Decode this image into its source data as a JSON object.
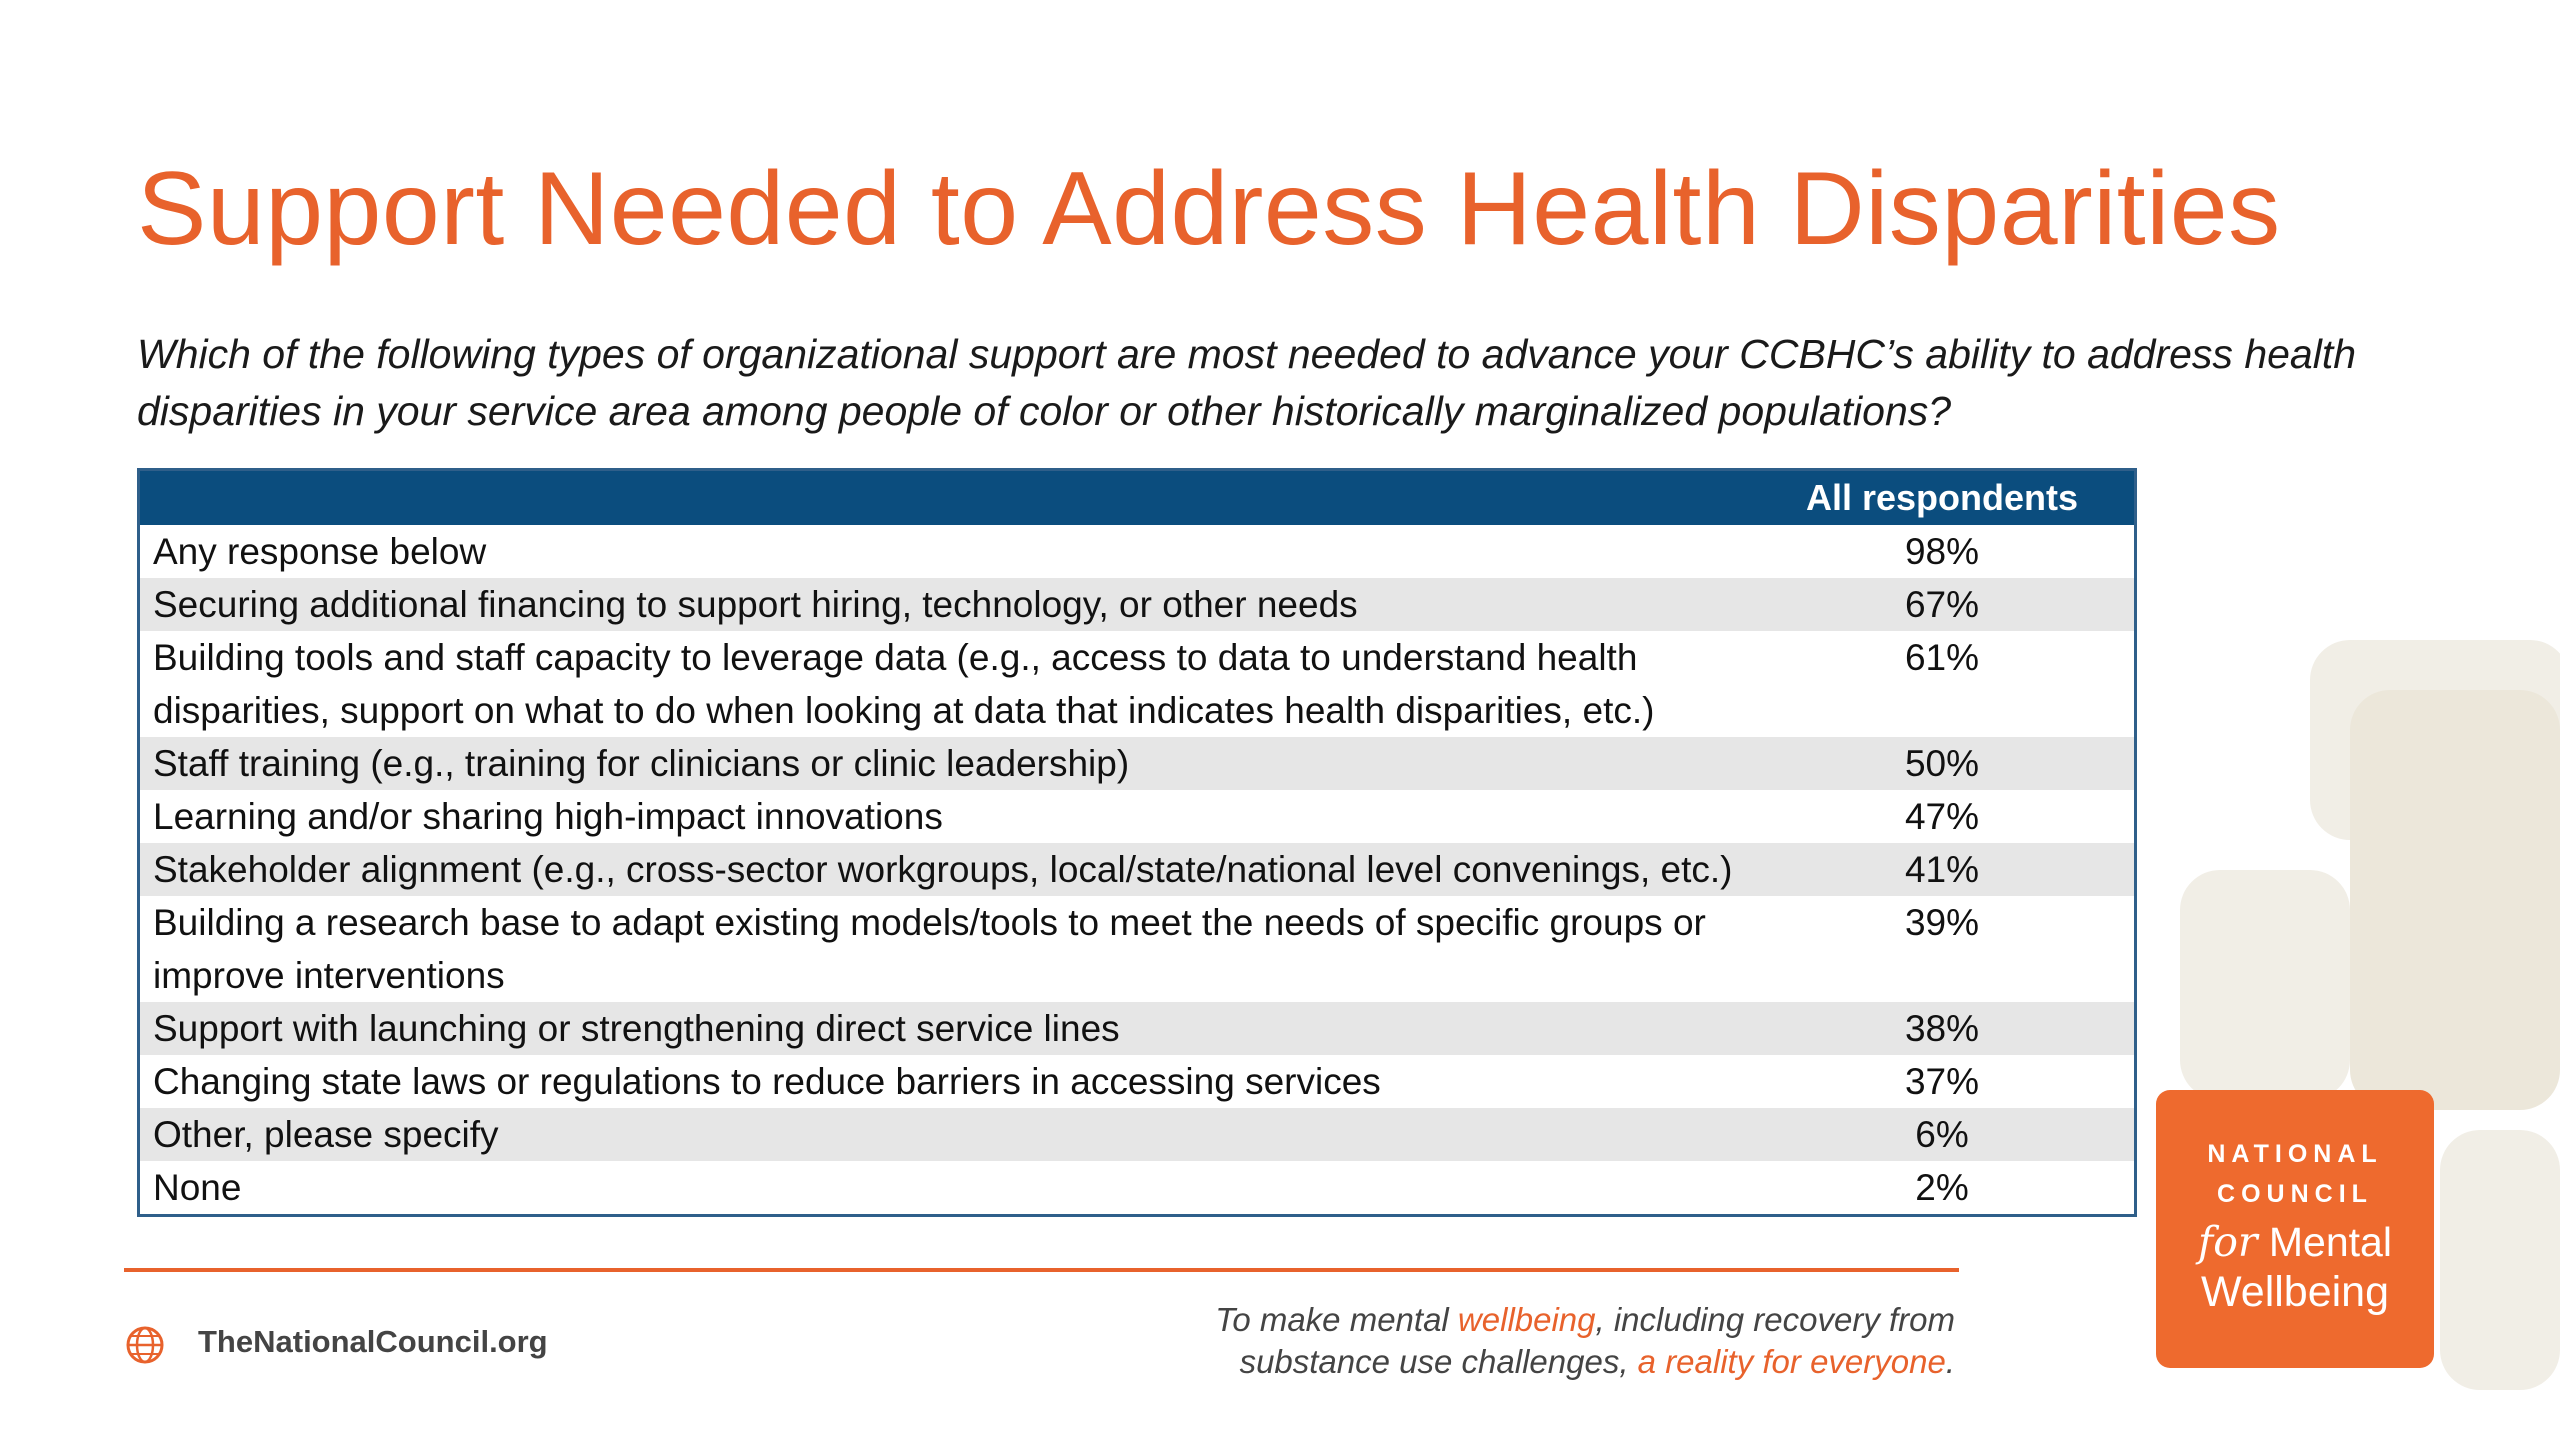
{
  "slide": {
    "title": "Support Needed to Address Health Disparities",
    "question": "Which of the following types of organizational support are most needed to advance your CCBHC’s ability to address health disparities in your service area among people of color or other historically marginalized populations?"
  },
  "table": {
    "column_header": "All respondents",
    "rows": [
      {
        "label": "Any response below",
        "value": "98%"
      },
      {
        "label": "Securing additional financing to support hiring, technology, or other needs",
        "value": "67%"
      },
      {
        "label": "Building tools and staff capacity to leverage data (e.g., access to data to understand health disparities, support on what to do when looking at data that indicates health disparities, etc.)",
        "value": "61%"
      },
      {
        "label": "Staff training (e.g., training for clinicians or clinic leadership)",
        "value": "50%"
      },
      {
        "label": "Learning and/or sharing high-impact innovations",
        "value": "47%"
      },
      {
        "label": "Stakeholder alignment (e.g., cross-sector workgroups, local/state/national level convenings, etc.)",
        "value": "41%"
      },
      {
        "label": "Building a research base to adapt existing models/tools to meet the needs of specific groups or improve interventions",
        "value": "39%"
      },
      {
        "label": "Support with launching or strengthening direct service lines",
        "value": "38%"
      },
      {
        "label": "Changing state laws or regulations to reduce barriers in accessing services",
        "value": "37%"
      },
      {
        "label": "Other, please specify",
        "value": "6%"
      },
      {
        "label": "None",
        "value": "2%"
      }
    ]
  },
  "footer": {
    "site": "TheNationalCouncil.org",
    "tagline_part1": "To make mental ",
    "tagline_hl1": "wellbeing",
    "tagline_part2": ", including recovery from substance use challenges, ",
    "tagline_hl2": "a reality for everyone",
    "tagline_part3": "."
  },
  "logo": {
    "line1": "NATIONAL",
    "line2": "COUNCIL",
    "line3_for": "for",
    "line3_rest": " Mental",
    "line4": "Wellbeing"
  },
  "colors": {
    "accent": "#e8622c",
    "table_header": "#0b4d7e",
    "alt_row": "#e6e6e6",
    "logo_bg": "#ee6a2e"
  }
}
